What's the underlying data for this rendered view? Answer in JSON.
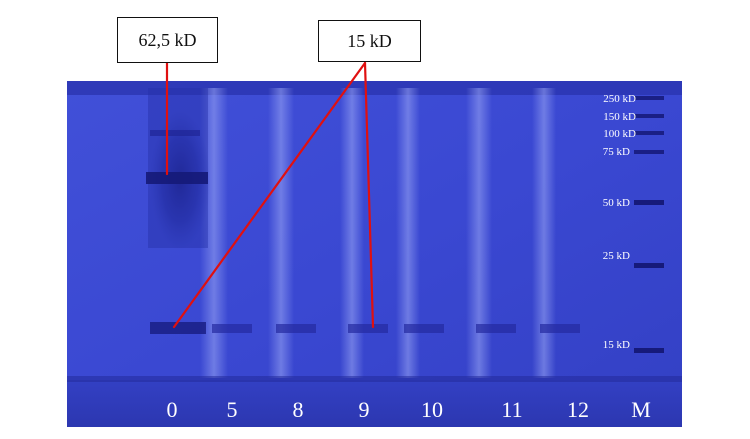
{
  "callouts": {
    "band_62": "62,5 kD",
    "band_15": "15 kD"
  },
  "lanes": [
    "0",
    "5",
    "8",
    "9",
    "10",
    "11",
    "12",
    "M"
  ],
  "markers": [
    "250 kD",
    "150 kD",
    "100 kD",
    "75 kD",
    "50 kD",
    "25 kD",
    "15 kD"
  ],
  "colors": {
    "gel": "#3a46d0",
    "gel_dark": "#1f2698",
    "band": "#161a7a",
    "annotation_line": "#e01010",
    "label_text": "#ffffff"
  }
}
